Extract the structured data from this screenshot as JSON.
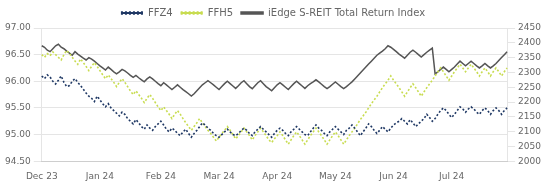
{
  "chart_data": {
    "type": "line",
    "categories": [
      "Dec 23",
      null,
      null,
      null,
      null,
      null,
      null,
      null,
      null,
      null,
      null,
      null,
      null,
      null,
      null,
      null,
      null,
      null,
      null,
      null,
      null,
      "Jan 24",
      null,
      null,
      null,
      null,
      null,
      null,
      null,
      null,
      null,
      null,
      null,
      null,
      null,
      null,
      null,
      null,
      null,
      null,
      null,
      null,
      null,
      "Feb 24",
      null,
      null,
      null,
      null,
      null,
      null,
      null,
      null,
      null,
      null,
      null,
      null,
      null,
      null,
      null,
      null,
      null,
      null,
      null,
      null,
      "Mar 24",
      null,
      null,
      null,
      null,
      null,
      null,
      null,
      null,
      null,
      null,
      null,
      null,
      null,
      null,
      null,
      null,
      null,
      null,
      null,
      null,
      "Apr 24",
      null,
      null,
      null,
      null,
      null,
      null,
      null,
      null,
      null,
      null,
      null,
      null,
      null,
      null,
      null,
      null,
      null,
      null,
      null,
      null,
      "May 24",
      null,
      null,
      null,
      null,
      null,
      null,
      null,
      null,
      null,
      null,
      null,
      null,
      null,
      null,
      null,
      null,
      null,
      null,
      null,
      null,
      "Jun 24",
      null,
      null,
      null,
      null,
      null,
      null,
      null,
      null,
      null,
      null,
      null,
      null,
      null,
      null,
      null,
      null,
      null,
      null,
      null,
      null,
      "Jul 24",
      null,
      null,
      null,
      null,
      null,
      null,
      null,
      null,
      null,
      null,
      null,
      null,
      null,
      null,
      null,
      null,
      null,
      null,
      null,
      null
    ],
    "series": [
      {
        "name": "FFZ4",
        "color": "#1f3864",
        "line_style": "dotted",
        "values": [
          96.1,
          96.05,
          96.12,
          96.08,
          96.0,
          95.95,
          96.02,
          96.1,
          95.98,
          95.9,
          95.92,
          96.0,
          96.05,
          95.98,
          95.92,
          95.85,
          95.78,
          95.72,
          95.68,
          95.62,
          95.72,
          95.65,
          95.58,
          95.52,
          95.58,
          95.5,
          95.45,
          95.4,
          95.35,
          95.42,
          95.38,
          95.3,
          95.25,
          95.2,
          95.28,
          95.22,
          95.15,
          95.1,
          95.18,
          95.12,
          95.08,
          95.15,
          95.2,
          95.25,
          95.18,
          95.1,
          95.05,
          95.12,
          95.08,
          95.02,
          94.98,
          95.05,
          95.1,
          95.02,
          94.95,
          95.02,
          95.08,
          95.15,
          95.22,
          95.18,
          95.12,
          95.08,
          95.02,
          94.98,
          94.95,
          95.0,
          95.05,
          95.1,
          95.05,
          95.0,
          94.98,
          95.02,
          95.08,
          95.12,
          95.08,
          95.02,
          94.98,
          95.05,
          95.1,
          95.15,
          95.1,
          95.05,
          95.0,
          94.95,
          95.02,
          95.08,
          95.12,
          95.08,
          95.02,
          94.98,
          95.05,
          95.1,
          95.15,
          95.1,
          95.05,
          95.0,
          94.98,
          95.05,
          95.12,
          95.18,
          95.12,
          95.08,
          95.02,
          94.98,
          95.05,
          95.1,
          95.15,
          95.1,
          95.05,
          95.0,
          95.08,
          95.12,
          95.18,
          95.12,
          95.05,
          94.98,
          95.05,
          95.12,
          95.2,
          95.15,
          95.08,
          95.02,
          95.08,
          95.15,
          95.1,
          95.05,
          95.12,
          95.18,
          95.22,
          95.25,
          95.3,
          95.25,
          95.2,
          95.28,
          95.22,
          95.15,
          95.2,
          95.25,
          95.3,
          95.38,
          95.32,
          95.25,
          95.3,
          95.38,
          95.45,
          95.5,
          95.45,
          95.38,
          95.32,
          95.38,
          95.45,
          95.52,
          95.48,
          95.42,
          95.48,
          95.52,
          95.48,
          95.42,
          95.38,
          95.45,
          95.5,
          95.45,
          95.38,
          95.45,
          95.5,
          95.45,
          95.38,
          95.45,
          95.5
        ]
      },
      {
        "name": "FFH5",
        "color": "#c8dc50",
        "line_style": "dotted",
        "values": [
          96.5,
          96.45,
          96.52,
          96.48,
          96.55,
          96.5,
          96.45,
          96.4,
          96.5,
          96.58,
          96.52,
          96.45,
          96.38,
          96.32,
          96.42,
          96.35,
          96.28,
          96.2,
          96.28,
          96.35,
          96.28,
          96.2,
          96.12,
          96.05,
          96.12,
          96.05,
          95.98,
          95.9,
          95.98,
          96.05,
          95.98,
          95.9,
          95.82,
          95.75,
          95.82,
          95.75,
          95.68,
          95.6,
          95.68,
          95.75,
          95.68,
          95.6,
          95.52,
          95.45,
          95.52,
          95.45,
          95.38,
          95.3,
          95.38,
          95.45,
          95.38,
          95.3,
          95.22,
          95.15,
          95.08,
          95.15,
          95.22,
          95.3,
          95.22,
          95.15,
          95.08,
          95.02,
          94.95,
          94.88,
          94.95,
          95.02,
          95.08,
          95.15,
          95.08,
          95.0,
          94.92,
          94.98,
          95.05,
          95.12,
          95.05,
          94.98,
          94.9,
          94.98,
          95.05,
          95.12,
          95.05,
          94.98,
          94.9,
          94.85,
          94.92,
          94.98,
          95.05,
          94.98,
          94.9,
          94.82,
          94.9,
          94.98,
          95.05,
          94.98,
          94.9,
          94.82,
          94.9,
          94.98,
          95.05,
          95.12,
          95.05,
          94.98,
          94.9,
          94.82,
          94.9,
          94.98,
          95.05,
          94.98,
          94.9,
          94.82,
          94.9,
          94.98,
          95.05,
          95.12,
          95.2,
          95.28,
          95.35,
          95.42,
          95.5,
          95.58,
          95.65,
          95.72,
          95.8,
          95.88,
          95.95,
          96.02,
          96.1,
          96.02,
          95.95,
          95.88,
          95.8,
          95.72,
          95.8,
          95.88,
          95.95,
          95.88,
          95.8,
          95.72,
          95.8,
          95.88,
          95.95,
          96.02,
          96.1,
          96.18,
          96.25,
          96.18,
          96.1,
          96.02,
          96.1,
          96.18,
          96.25,
          96.32,
          96.25,
          96.18,
          96.25,
          96.32,
          96.25,
          96.18,
          96.1,
          96.18,
          96.25,
          96.18,
          96.1,
          96.18,
          96.25,
          96.18,
          96.1,
          96.18,
          96.25
        ]
      },
      {
        "name": "iEdge S-REIT Total Return Index",
        "color": "#555555",
        "line_style": "solid",
        "axis": "y2",
        "values": [
          2390,
          2385,
          2375,
          2370,
          2380,
          2390,
          2395,
          2385,
          2380,
          2372,
          2365,
          2358,
          2370,
          2362,
          2355,
          2348,
          2342,
          2350,
          2345,
          2338,
          2330,
          2322,
          2315,
          2308,
          2318,
          2310,
          2302,
          2295,
          2302,
          2310,
          2305,
          2298,
          2290,
          2283,
          2290,
          2282,
          2275,
          2268,
          2278,
          2285,
          2278,
          2270,
          2262,
          2255,
          2265,
          2258,
          2250,
          2242,
          2250,
          2258,
          2250,
          2242,
          2235,
          2228,
          2220,
          2228,
          2238,
          2248,
          2258,
          2265,
          2272,
          2265,
          2258,
          2250,
          2242,
          2252,
          2262,
          2270,
          2262,
          2254,
          2246,
          2255,
          2265,
          2272,
          2262,
          2252,
          2245,
          2255,
          2265,
          2272,
          2262,
          2252,
          2245,
          2238,
          2248,
          2258,
          2265,
          2258,
          2250,
          2242,
          2252,
          2262,
          2270,
          2262,
          2254,
          2246,
          2255,
          2262,
          2268,
          2275,
          2268,
          2260,
          2252,
          2245,
          2252,
          2260,
          2268,
          2260,
          2252,
          2245,
          2252,
          2260,
          2268,
          2278,
          2288,
          2298,
          2308,
          2318,
          2328,
          2338,
          2348,
          2358,
          2365,
          2372,
          2380,
          2390,
          2385,
          2378,
          2370,
          2362,
          2355,
          2348,
          2358,
          2368,
          2375,
          2368,
          2360,
          2352,
          2360,
          2368,
          2375,
          2382,
          2295,
          2302,
          2310,
          2318,
          2310,
          2302,
          2310,
          2318,
          2328,
          2338,
          2330,
          2322,
          2330,
          2338,
          2330,
          2322,
          2315,
          2322,
          2330,
          2322,
          2315,
          2322,
          2330,
          2340,
          2350,
          2360,
          2370
        ]
      }
    ],
    "ylim": [
      94.5,
      97.0
    ],
    "yticks": [
      {
        "value": 94.5,
        "label": "94.50"
      },
      {
        "value": 95.0,
        "label": "95.00"
      },
      {
        "value": 95.5,
        "label": "95.50"
      },
      {
        "value": 96.0,
        "label": "96.00"
      },
      {
        "value": 96.5,
        "label": "96.50"
      },
      {
        "value": 97.0,
        "label": "97.00"
      }
    ],
    "y2lim": [
      2000,
      2450
    ],
    "y2ticks": [
      2000,
      2050,
      2100,
      2150,
      2200,
      2250,
      2300,
      2350,
      2400,
      2450
    ],
    "grid": true,
    "legend": "top"
  }
}
